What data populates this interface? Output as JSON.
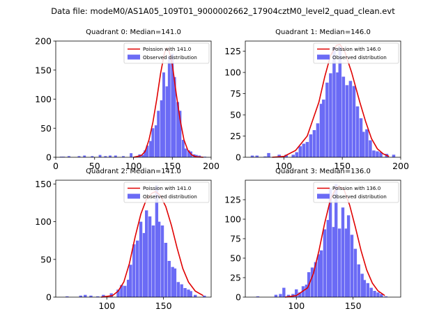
{
  "suptitle": "Data file: modeM0/AS1A05_109T01_9000002662_17904cztM0_level2_quad_clean.evt",
  "colors": {
    "hist": "#6b6bf5",
    "curve": "#e00000"
  },
  "chart_data": [
    {
      "type": "bar",
      "title": "Quadrant 0: Median=141.0",
      "legend": [
        "Poission with 141.0",
        "Observed distribution"
      ],
      "legend_position": "top-right",
      "xlim": [
        0,
        200
      ],
      "ylim": [
        0,
        200
      ],
      "xticks": [
        0,
        50,
        100,
        150,
        200
      ],
      "yticks": [
        0,
        50,
        100,
        150,
        200
      ],
      "bin_width": 3.5,
      "bins": [
        [
          7,
          1
        ],
        [
          10,
          1
        ],
        [
          17,
          2
        ],
        [
          30,
          2
        ],
        [
          37,
          3
        ],
        [
          47,
          2
        ],
        [
          57,
          4
        ],
        [
          64,
          2
        ],
        [
          70,
          3
        ],
        [
          77,
          3
        ],
        [
          87,
          2
        ],
        [
          97,
          7
        ],
        [
          108,
          5
        ],
        [
          112,
          4
        ],
        [
          115,
          12
        ],
        [
          118,
          20
        ],
        [
          122,
          28
        ],
        [
          125,
          50
        ],
        [
          129,
          55
        ],
        [
          132,
          80
        ],
        [
          136,
          98
        ],
        [
          139,
          146
        ],
        [
          143,
          122
        ],
        [
          146,
          175
        ],
        [
          150,
          178
        ],
        [
          153,
          138
        ],
        [
          157,
          95
        ],
        [
          160,
          80
        ],
        [
          164,
          30
        ],
        [
          167,
          15
        ],
        [
          171,
          12
        ],
        [
          174,
          10
        ],
        [
          178,
          5
        ],
        [
          181,
          4
        ],
        [
          185,
          3
        ],
        [
          192,
          1
        ]
      ],
      "curve": [
        [
          100,
          0
        ],
        [
          110,
          3
        ],
        [
          115,
          10
        ],
        [
          120,
          30
        ],
        [
          125,
          60
        ],
        [
          130,
          100
        ],
        [
          135,
          145
        ],
        [
          140,
          180
        ],
        [
          143,
          188
        ],
        [
          146,
          182
        ],
        [
          150,
          160
        ],
        [
          155,
          110
        ],
        [
          160,
          65
        ],
        [
          165,
          30
        ],
        [
          170,
          12
        ],
        [
          175,
          4
        ],
        [
          180,
          1
        ],
        [
          190,
          0
        ]
      ]
    },
    {
      "type": "bar",
      "title": "Quadrant 1: Median=146.0",
      "legend": [
        "Poission with 146.0",
        "Observed distribution"
      ],
      "legend_position": "top-right",
      "xlim": [
        67,
        200
      ],
      "ylim": [
        0,
        137
      ],
      "xticks": [
        100,
        150,
        200
      ],
      "yticks": [
        0,
        25,
        50,
        75,
        100,
        125
      ],
      "bin_width": 2.7,
      "bins": [
        [
          73,
          2
        ],
        [
          77,
          2
        ],
        [
          84,
          1
        ],
        [
          87,
          5
        ],
        [
          96,
          3
        ],
        [
          102,
          3
        ],
        [
          108,
          3
        ],
        [
          111,
          6
        ],
        [
          114,
          13
        ],
        [
          117,
          16
        ],
        [
          120,
          18
        ],
        [
          123,
          27
        ],
        [
          126,
          32
        ],
        [
          129,
          40
        ],
        [
          132,
          63
        ],
        [
          134,
          68
        ],
        [
          137,
          88
        ],
        [
          140,
          99
        ],
        [
          143,
          130
        ],
        [
          146,
          100
        ],
        [
          148,
          130
        ],
        [
          151,
          95
        ],
        [
          154,
          85
        ],
        [
          157,
          90
        ],
        [
          160,
          84
        ],
        [
          163,
          60
        ],
        [
          166,
          46
        ],
        [
          168,
          30
        ],
        [
          171,
          33
        ],
        [
          174,
          20
        ],
        [
          177,
          8
        ],
        [
          180,
          7
        ],
        [
          183,
          6
        ],
        [
          188,
          4
        ],
        [
          194,
          3
        ]
      ],
      "curve": [
        [
          90,
          0
        ],
        [
          100,
          1
        ],
        [
          110,
          8
        ],
        [
          120,
          25
        ],
        [
          130,
          65
        ],
        [
          135,
          95
        ],
        [
          140,
          120
        ],
        [
          145,
          132
        ],
        [
          148,
          133
        ],
        [
          152,
          125
        ],
        [
          158,
          100
        ],
        [
          165,
          65
        ],
        [
          170,
          42
        ],
        [
          175,
          22
        ],
        [
          180,
          10
        ],
        [
          185,
          4
        ],
        [
          190,
          1
        ]
      ]
    },
    {
      "type": "bar",
      "title": "Quadrant 2: Median=141.0",
      "legend": [
        "Poission with 141.0",
        "Observed distribution"
      ],
      "legend_position": "top-right",
      "xlim": [
        55,
        192
      ],
      "ylim": [
        0,
        155
      ],
      "xticks": [
        100,
        150
      ],
      "yticks": [
        0,
        50,
        100,
        150
      ],
      "bin_width": 2.7,
      "bins": [
        [
          65,
          1
        ],
        [
          77,
          2
        ],
        [
          81,
          3
        ],
        [
          86,
          2
        ],
        [
          92,
          1
        ],
        [
          97,
          3
        ],
        [
          104,
          5
        ],
        [
          110,
          10
        ],
        [
          113,
          16
        ],
        [
          116,
          15
        ],
        [
          119,
          23
        ],
        [
          121,
          43
        ],
        [
          124,
          70
        ],
        [
          127,
          75
        ],
        [
          130,
          100
        ],
        [
          133,
          85
        ],
        [
          135,
          115
        ],
        [
          138,
          107
        ],
        [
          141,
          95
        ],
        [
          144,
          148
        ],
        [
          146,
          100
        ],
        [
          149,
          95
        ],
        [
          152,
          72
        ],
        [
          155,
          48
        ],
        [
          158,
          40
        ],
        [
          160,
          38
        ],
        [
          163,
          20
        ],
        [
          166,
          17
        ],
        [
          169,
          12
        ],
        [
          172,
          10
        ],
        [
          174,
          8
        ],
        [
          178,
          3
        ],
        [
          186,
          2
        ]
      ],
      "curve": [
        [
          95,
          0
        ],
        [
          105,
          2
        ],
        [
          110,
          8
        ],
        [
          115,
          20
        ],
        [
          120,
          45
        ],
        [
          125,
          80
        ],
        [
          130,
          110
        ],
        [
          135,
          130
        ],
        [
          140,
          138
        ],
        [
          143,
          140
        ],
        [
          147,
          135
        ],
        [
          152,
          120
        ],
        [
          157,
          95
        ],
        [
          162,
          65
        ],
        [
          167,
          38
        ],
        [
          172,
          20
        ],
        [
          178,
          8
        ],
        [
          185,
          2
        ]
      ]
    },
    {
      "type": "bar",
      "title": "Quadrant 3: Median=136.0",
      "legend": [
        "Poission with 136.0",
        "Observed distribution"
      ],
      "legend_position": "top-right",
      "xlim": [
        55,
        192
      ],
      "ylim": [
        0,
        150
      ],
      "xticks": [
        100,
        150
      ],
      "yticks": [
        0,
        25,
        50,
        75,
        100,
        125
      ],
      "bin_width": 2.7,
      "bins": [
        [
          66,
          1
        ],
        [
          82,
          3
        ],
        [
          86,
          4
        ],
        [
          89,
          12
        ],
        [
          93,
          3
        ],
        [
          97,
          4
        ],
        [
          100,
          10
        ],
        [
          103,
          6
        ],
        [
          106,
          14
        ],
        [
          109,
          16
        ],
        [
          111,
          32
        ],
        [
          114,
          38
        ],
        [
          117,
          45
        ],
        [
          120,
          55
        ],
        [
          122,
          60
        ],
        [
          125,
          87
        ],
        [
          128,
          99
        ],
        [
          130,
          140
        ],
        [
          133,
          90
        ],
        [
          135,
          145
        ],
        [
          138,
          88
        ],
        [
          141,
          115
        ],
        [
          144,
          88
        ],
        [
          146,
          105
        ],
        [
          149,
          80
        ],
        [
          152,
          62
        ],
        [
          155,
          42
        ],
        [
          158,
          30
        ],
        [
          160,
          22
        ],
        [
          163,
          18
        ],
        [
          166,
          12
        ],
        [
          169,
          8
        ],
        [
          172,
          6
        ],
        [
          175,
          4
        ],
        [
          179,
          1
        ]
      ],
      "curve": [
        [
          90,
          0
        ],
        [
          100,
          2
        ],
        [
          110,
          12
        ],
        [
          115,
          30
        ],
        [
          120,
          60
        ],
        [
          125,
          95
        ],
        [
          130,
          125
        ],
        [
          135,
          140
        ],
        [
          138,
          142
        ],
        [
          142,
          138
        ],
        [
          147,
          118
        ],
        [
          152,
          90
        ],
        [
          157,
          60
        ],
        [
          162,
          35
        ],
        [
          167,
          18
        ],
        [
          172,
          8
        ],
        [
          178,
          2
        ]
      ]
    }
  ]
}
